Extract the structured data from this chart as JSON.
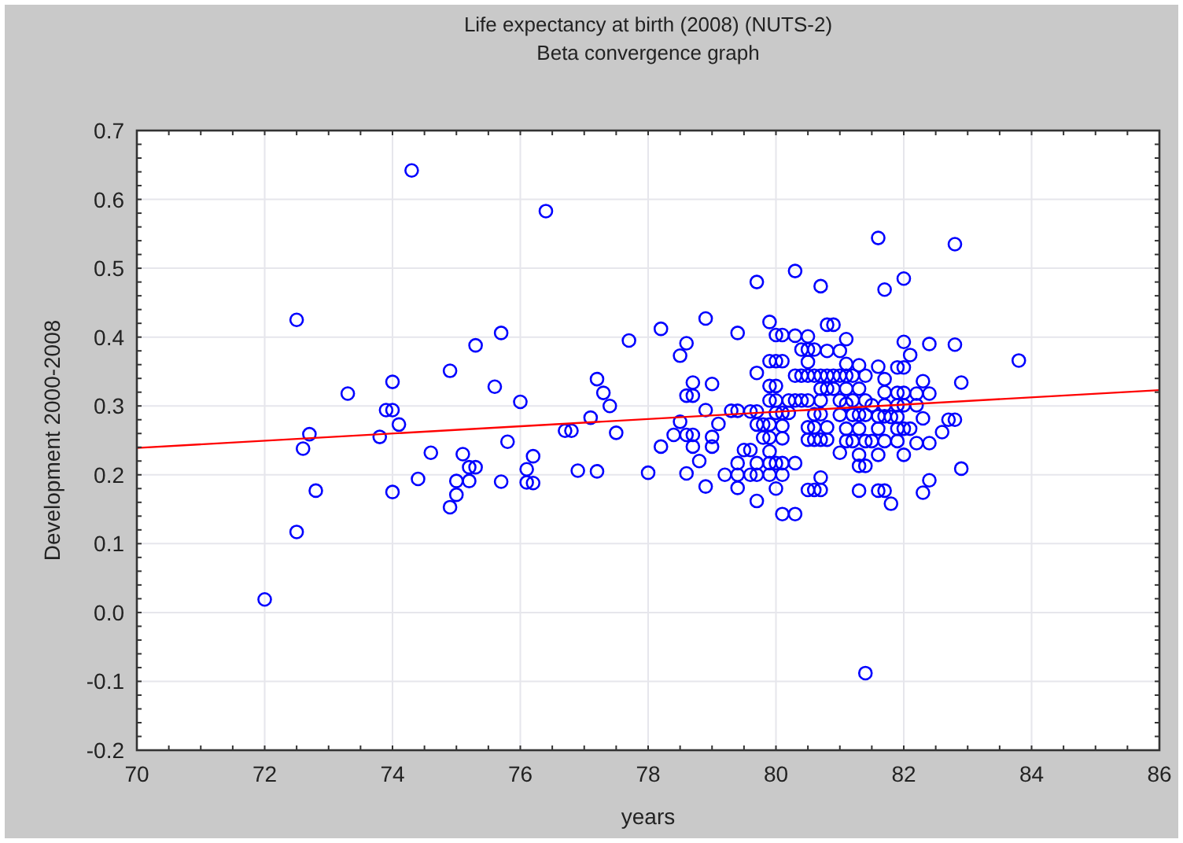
{
  "chart_data": {
    "type": "scatter",
    "title": "Life expectancy at birth (2008) (NUTS-2)",
    "subtitle": "Beta convergence graph",
    "xlabel": "years",
    "ylabel": "Development 2000-2008",
    "xlim": [
      70,
      86
    ],
    "xticks": [
      70,
      72,
      74,
      76,
      78,
      80,
      82,
      84,
      86
    ],
    "ylim": [
      -0.2,
      0.7
    ],
    "yticks": [
      {
        "value": -0.2,
        "label": "-0.2"
      },
      {
        "value": -0.1,
        "label": "-0.1"
      },
      {
        "value": 0,
        "label": "0.0"
      },
      {
        "value": 0.1,
        "label": "0.1"
      },
      {
        "value": 0.2,
        "label": "0.2"
      },
      {
        "value": 0.3,
        "label": "0.3"
      },
      {
        "value": 0.4,
        "label": "0.4"
      },
      {
        "value": 0.5,
        "label": "0.5"
      },
      {
        "value": 0.6,
        "label": "0.6"
      },
      {
        "value": 0.7,
        "label": "0.7"
      }
    ],
    "grid": true,
    "series": [
      {
        "marker": "circle",
        "color": "#0000ff",
        "x": [
          74.3,
          76.4,
          72.5,
          75.7,
          75.3,
          74.9,
          74.0,
          75.6,
          73.3,
          76.0,
          73.9,
          74.0,
          74.1,
          72.7,
          73.8,
          72.6,
          75.8,
          74.6,
          75.1,
          75.2,
          75.3,
          76.2,
          76.1,
          74.4,
          75.0,
          75.2,
          75.7,
          76.1,
          76.2,
          72.8,
          74.0,
          75.0,
          74.9,
          72.5,
          72.0,
          77.2,
          77.3,
          77.4,
          77.1,
          76.7,
          76.8,
          77.5,
          76.9,
          77.2,
          77.7,
          81.6,
          82.8,
          80.3,
          79.7,
          80.7,
          82.0,
          81.7,
          78.9,
          79.9,
          80.8,
          80.9,
          78.2,
          79.4,
          78.6,
          78.5,
          80.0,
          80.1,
          80.3,
          80.5,
          81.1,
          82.0,
          82.4,
          82.8,
          83.8,
          80.4,
          80.5,
          80.6,
          80.8,
          81.0,
          82.1,
          79.7,
          79.9,
          80.0,
          80.1,
          80.5,
          81.1,
          81.3,
          81.6,
          81.9,
          82.0,
          80.3,
          80.4,
          80.5,
          80.6,
          80.7,
          80.8,
          80.9,
          81.0,
          81.1,
          81.2,
          81.4,
          81.7,
          82.3,
          78.7,
          79.0,
          82.9,
          79.9,
          80.0,
          80.7,
          80.8,
          80.9,
          81.1,
          81.3,
          81.7,
          78.6,
          78.7,
          81.9,
          82.0,
          82.2,
          82.4,
          79.9,
          80.0,
          80.2,
          80.3,
          80.4,
          80.5,
          80.7,
          81.0,
          81.2,
          81.4,
          81.1,
          81.5,
          81.7,
          81.9,
          82.0,
          82.2,
          78.9,
          79.3,
          79.4,
          79.6,
          79.7,
          80.0,
          80.1,
          80.2,
          80.6,
          80.7,
          81.0,
          81.2,
          81.3,
          81.4,
          81.6,
          81.7,
          81.8,
          81.9,
          78.5,
          79.1,
          82.3,
          82.7,
          82.8,
          79.7,
          79.8,
          79.9,
          80.1,
          80.5,
          80.6,
          80.8,
          81.1,
          81.3,
          81.6,
          81.9,
          82.0,
          82.1,
          82.6,
          78.4,
          78.6,
          78.7,
          79.0,
          79.8,
          79.9,
          80.1,
          80.5,
          80.6,
          80.7,
          80.8,
          81.1,
          81.2,
          81.4,
          81.5,
          81.7,
          81.9,
          82.2,
          82.4,
          78.2,
          78.7,
          79.0,
          79.5,
          79.6,
          79.9,
          81.0,
          81.3,
          81.6,
          82.0,
          78.8,
          79.4,
          79.7,
          79.9,
          80.0,
          80.1,
          80.3,
          81.3,
          81.4,
          78.0,
          78.6,
          79.2,
          79.4,
          79.6,
          79.7,
          79.9,
          80.1,
          80.7,
          82.4,
          78.9,
          79.4,
          80.0,
          80.5,
          80.6,
          80.7,
          81.3,
          81.6,
          81.7,
          82.3,
          82.9,
          79.7,
          81.8,
          80.1,
          80.3,
          81.4
        ],
        "values": [
          0.642,
          0.583,
          0.425,
          0.406,
          0.388,
          0.351,
          0.335,
          0.328,
          0.318,
          0.306,
          0.294,
          0.294,
          0.273,
          0.259,
          0.255,
          0.238,
          0.248,
          0.232,
          0.23,
          0.211,
          0.211,
          0.227,
          0.208,
          0.194,
          0.191,
          0.191,
          0.19,
          0.189,
          0.188,
          0.177,
          0.175,
          0.171,
          0.153,
          0.117,
          0.019,
          0.339,
          0.319,
          0.3,
          0.283,
          0.264,
          0.264,
          0.261,
          0.206,
          0.205,
          0.395,
          0.544,
          0.535,
          0.496,
          0.48,
          0.474,
          0.485,
          0.469,
          0.427,
          0.422,
          0.418,
          0.418,
          0.412,
          0.406,
          0.391,
          0.373,
          0.403,
          0.403,
          0.402,
          0.401,
          0.397,
          0.393,
          0.39,
          0.389,
          0.366,
          0.382,
          0.382,
          0.382,
          0.38,
          0.38,
          0.374,
          0.348,
          0.365,
          0.365,
          0.365,
          0.364,
          0.361,
          0.359,
          0.357,
          0.356,
          0.356,
          0.344,
          0.344,
          0.344,
          0.344,
          0.344,
          0.344,
          0.344,
          0.344,
          0.344,
          0.344,
          0.344,
          0.339,
          0.336,
          0.334,
          0.332,
          0.334,
          0.329,
          0.329,
          0.325,
          0.325,
          0.325,
          0.325,
          0.325,
          0.32,
          0.315,
          0.315,
          0.319,
          0.319,
          0.318,
          0.318,
          0.308,
          0.308,
          0.308,
          0.308,
          0.308,
          0.308,
          0.308,
          0.308,
          0.308,
          0.308,
          0.303,
          0.301,
          0.301,
          0.301,
          0.301,
          0.301,
          0.294,
          0.293,
          0.293,
          0.292,
          0.292,
          0.29,
          0.29,
          0.29,
          0.288,
          0.288,
          0.287,
          0.287,
          0.287,
          0.287,
          0.285,
          0.285,
          0.284,
          0.284,
          0.277,
          0.274,
          0.282,
          0.28,
          0.28,
          0.273,
          0.273,
          0.273,
          0.271,
          0.269,
          0.269,
          0.269,
          0.267,
          0.267,
          0.267,
          0.267,
          0.267,
          0.267,
          0.262,
          0.258,
          0.258,
          0.258,
          0.255,
          0.254,
          0.254,
          0.253,
          0.251,
          0.251,
          0.251,
          0.251,
          0.249,
          0.249,
          0.249,
          0.249,
          0.249,
          0.249,
          0.246,
          0.246,
          0.241,
          0.241,
          0.241,
          0.236,
          0.236,
          0.234,
          0.232,
          0.229,
          0.229,
          0.229,
          0.22,
          0.217,
          0.217,
          0.217,
          0.217,
          0.217,
          0.217,
          0.213,
          0.213,
          0.203,
          0.202,
          0.2,
          0.2,
          0.2,
          0.2,
          0.2,
          0.2,
          0.196,
          0.192,
          0.183,
          0.181,
          0.18,
          0.178,
          0.178,
          0.178,
          0.177,
          0.177,
          0.177,
          0.174,
          0.209,
          0.162,
          0.158,
          0.143,
          0.143,
          -0.088
        ]
      },
      {
        "type": "line",
        "marker": "none",
        "line_style": "solid",
        "color": "#ff0000",
        "x": [
          70,
          86
        ],
        "values": [
          0.239,
          0.323
        ]
      }
    ]
  }
}
